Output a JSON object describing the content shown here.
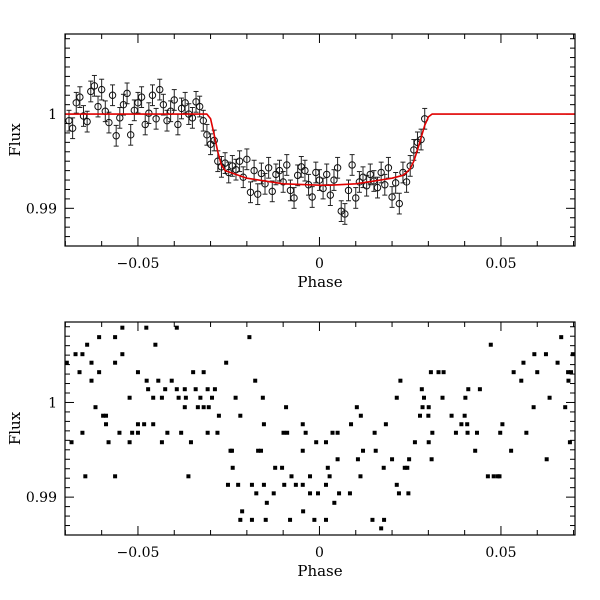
{
  "chart_data": [
    {
      "type": "scatter",
      "title": "",
      "xlabel": "Phase",
      "ylabel": "Flux",
      "xlim": [
        -0.0701,
        0.0704
      ],
      "ylim": [
        0.986,
        1.0085
      ],
      "xticks": [
        -0.05,
        0,
        0.05
      ],
      "xtick_labels": [
        "−0.05",
        "0",
        "0.05"
      ],
      "yticks": [
        0.99,
        1
      ],
      "ytick_labels": [
        "0.99",
        "1"
      ],
      "grid": false,
      "marker": "open-circle",
      "yerr": 0.0011,
      "points": [
        [
          -0.069,
          0.9993
        ],
        [
          -0.068,
          0.9985
        ],
        [
          -0.067,
          1.0012
        ],
        [
          -0.066,
          1.0018
        ],
        [
          -0.065,
          0.9998
        ],
        [
          -0.064,
          0.9992
        ],
        [
          -0.063,
          1.0024
        ],
        [
          -0.062,
          1.003
        ],
        [
          -0.061,
          1.0008
        ],
        [
          -0.06,
          1.0026
        ],
        [
          -0.059,
          1.0003
        ],
        [
          -0.058,
          0.9991
        ],
        [
          -0.057,
          1.002
        ],
        [
          -0.056,
          0.9977
        ],
        [
          -0.055,
          0.9996
        ],
        [
          -0.054,
          1.001
        ],
        [
          -0.053,
          1.0022
        ],
        [
          -0.052,
          0.9978
        ],
        [
          -0.051,
          1.0004
        ],
        [
          -0.05,
          1.0012
        ],
        [
          -0.049,
          1.0018
        ],
        [
          -0.048,
          0.9989
        ],
        [
          -0.047,
          1.0001
        ],
        [
          -0.046,
          1.002
        ],
        [
          -0.045,
          0.9995
        ],
        [
          -0.044,
          1.0026
        ],
        [
          -0.043,
          1.001
        ],
        [
          -0.042,
          0.9993
        ],
        [
          -0.041,
          1.0003
        ],
        [
          -0.04,
          1.0015
        ],
        [
          -0.039,
          0.9989
        ],
        [
          -0.038,
          1.0006
        ],
        [
          -0.037,
          1.0012
        ],
        [
          -0.036,
          1.0
        ],
        [
          -0.035,
          0.9996
        ],
        [
          -0.034,
          1.0013
        ],
        [
          -0.033,
          1.0008
        ],
        [
          -0.032,
          0.9993
        ],
        [
          -0.031,
          0.9978
        ],
        [
          -0.03,
          0.9968
        ],
        [
          -0.029,
          0.9972
        ],
        [
          -0.028,
          0.995
        ],
        [
          -0.027,
          0.9944
        ],
        [
          -0.026,
          0.9948
        ],
        [
          -0.025,
          0.9938
        ],
        [
          -0.024,
          0.9945
        ],
        [
          -0.023,
          0.9941
        ],
        [
          -0.022,
          0.995
        ],
        [
          -0.021,
          0.9933
        ],
        [
          -0.02,
          0.9952
        ],
        [
          -0.019,
          0.9917
        ],
        [
          -0.018,
          0.994
        ],
        [
          -0.017,
          0.9915
        ],
        [
          -0.016,
          0.9937
        ],
        [
          -0.015,
          0.9926
        ],
        [
          -0.014,
          0.9943
        ],
        [
          -0.013,
          0.9918
        ],
        [
          -0.012,
          0.9936
        ],
        [
          -0.011,
          0.994
        ],
        [
          -0.01,
          0.9928
        ],
        [
          -0.009,
          0.9946
        ],
        [
          -0.008,
          0.9919
        ],
        [
          -0.007,
          0.9911
        ],
        [
          -0.006,
          0.9935
        ],
        [
          -0.005,
          0.9944
        ],
        [
          -0.004,
          0.994
        ],
        [
          -0.003,
          0.9925
        ],
        [
          -0.002,
          0.9912
        ],
        [
          -0.001,
          0.9938
        ],
        [
          0.0,
          0.993
        ],
        [
          0.001,
          0.9921
        ],
        [
          0.002,
          0.9936
        ],
        [
          0.003,
          0.9914
        ],
        [
          0.004,
          0.993
        ],
        [
          0.005,
          0.9943
        ],
        [
          0.006,
          0.9897
        ],
        [
          0.007,
          0.9894
        ],
        [
          0.008,
          0.9919
        ],
        [
          0.009,
          0.9946
        ],
        [
          0.01,
          0.9911
        ],
        [
          0.011,
          0.9928
        ],
        [
          0.012,
          0.9933
        ],
        [
          0.013,
          0.9924
        ],
        [
          0.014,
          0.9936
        ],
        [
          0.015,
          0.9929
        ],
        [
          0.016,
          0.9922
        ],
        [
          0.017,
          0.9938
        ],
        [
          0.018,
          0.9925
        ],
        [
          0.019,
          0.9943
        ],
        [
          0.02,
          0.9912
        ],
        [
          0.021,
          0.9927
        ],
        [
          0.022,
          0.9905
        ],
        [
          0.023,
          0.9938
        ],
        [
          0.024,
          0.9928
        ],
        [
          0.025,
          0.9945
        ],
        [
          0.026,
          0.9962
        ],
        [
          0.027,
          0.997
        ],
        [
          0.028,
          0.9973
        ],
        [
          0.029,
          0.9995
        ]
      ],
      "model": {
        "color": "#e00000",
        "x": [
          -0.0701,
          -0.031,
          -0.03,
          -0.029,
          -0.028,
          -0.027,
          -0.026,
          -0.02,
          -0.01,
          0,
          0.003,
          0.01,
          0.02,
          0.023,
          0.024,
          0.025,
          0.026,
          0.027,
          0.028,
          0.029,
          0.03,
          0.031,
          0.0704
        ],
        "y": [
          1,
          1,
          0.9995,
          0.9978,
          0.996,
          0.9946,
          0.994,
          0.9932,
          0.9926,
          0.99245,
          0.99245,
          0.9926,
          0.9932,
          0.9935,
          0.9938,
          0.9942,
          0.995,
          0.9962,
          0.9975,
          0.9988,
          0.9997,
          1,
          1
        ]
      }
    },
    {
      "type": "scatter",
      "title": "",
      "xlabel": "Phase",
      "ylabel": "Flux",
      "xlim": [
        -0.0701,
        0.0704
      ],
      "ylim": [
        0.986,
        1.0085
      ],
      "xticks": [
        -0.05,
        0,
        0.05
      ],
      "xtick_labels": [
        "−0.05",
        "0",
        "0.05"
      ],
      "yticks": [
        0.99,
        1
      ],
      "ytick_labels": [
        "0.99",
        "1"
      ],
      "grid": false,
      "marker": "filled-square",
      "points": [
        [
          -0.0696,
          1.0042
        ],
        [
          -0.0683,
          0.9958
        ],
        [
          -0.0672,
          1.0051
        ],
        [
          -0.0661,
          1.0032
        ],
        [
          -0.0653,
          1.0051
        ],
        [
          -0.0653,
          0.9968
        ],
        [
          -0.0645,
          0.9922
        ],
        [
          -0.064,
          1.0061
        ],
        [
          -0.0628,
          1.0042
        ],
        [
          -0.0628,
          1.0023
        ],
        [
          -0.0617,
          0.9995
        ],
        [
          -0.0607,
          1.0069
        ],
        [
          -0.0607,
          1.0032
        ],
        [
          -0.0596,
          0.9986
        ],
        [
          -0.0588,
          0.9986
        ],
        [
          -0.0588,
          0.9977
        ],
        [
          -0.0581,
          0.9958
        ],
        [
          -0.0563,
          1.0042
        ],
        [
          -0.0563,
          1.0069
        ],
        [
          -0.0563,
          0.9922
        ],
        [
          -0.0551,
          0.9968
        ],
        [
          -0.0543,
          1.0079
        ],
        [
          -0.0543,
          1.0051
        ],
        [
          -0.0523,
          1.0005
        ],
        [
          -0.0523,
          0.9958
        ],
        [
          -0.0516,
          0.9968
        ],
        [
          -0.05,
          1.0032
        ],
        [
          -0.05,
          0.9977
        ],
        [
          -0.05,
          0.9968
        ],
        [
          -0.0483,
          0.9977
        ],
        [
          -0.0477,
          1.0079
        ],
        [
          -0.0476,
          1.0023
        ],
        [
          -0.0472,
          1.0014
        ],
        [
          -0.0458,
          1.0005
        ],
        [
          -0.0458,
          0.9977
        ],
        [
          -0.0452,
          1.0061
        ],
        [
          -0.0444,
          1.0023
        ],
        [
          -0.0434,
          1.0005
        ],
        [
          -0.0434,
          0.9958
        ],
        [
          -0.0425,
          1.0014
        ],
        [
          -0.0419,
          0.9968
        ],
        [
          -0.0407,
          1.0023
        ],
        [
          -0.0393,
          1.0079
        ],
        [
          -0.0393,
          1.0014
        ],
        [
          -0.0388,
          1.0005
        ],
        [
          -0.0381,
          0.9968
        ],
        [
          -0.0371,
          1.0014
        ],
        [
          -0.0371,
          0.9995
        ],
        [
          -0.0368,
          1.0005
        ],
        [
          -0.0361,
          0.9922
        ],
        [
          -0.0354,
          0.9958
        ],
        [
          -0.0348,
          1.0032
        ],
        [
          -0.0341,
          1.0014
        ],
        [
          -0.0335,
          0.9995
        ],
        [
          -0.0328,
          1.0005
        ],
        [
          -0.0319,
          1.0032
        ],
        [
          -0.0319,
          0.9995
        ],
        [
          -0.0308,
          1.0014
        ],
        [
          -0.0308,
          0.9968
        ],
        [
          -0.0305,
          0.9995
        ],
        [
          -0.0296,
          1.0005
        ],
        [
          -0.0288,
          1.0014
        ],
        [
          -0.0281,
          0.9968
        ],
        [
          -0.0277,
          0.9986
        ],
        [
          -0.0257,
          1.0042
        ],
        [
          -0.0252,
          0.9913
        ],
        [
          -0.0245,
          0.9949
        ],
        [
          -0.0241,
          0.9949
        ],
        [
          -0.0239,
          0.9931
        ],
        [
          -0.0231,
          1.0005
        ],
        [
          -0.0224,
          0.9913
        ],
        [
          -0.0218,
          0.9986
        ],
        [
          -0.0218,
          0.9876
        ],
        [
          -0.0213,
          0.9885
        ],
        [
          -0.0186,
          0.9876
        ],
        [
          -0.0186,
          0.9913
        ],
        [
          -0.0193,
          1.0069
        ],
        [
          -0.0177,
          1.0023
        ],
        [
          -0.0174,
          0.9904
        ],
        [
          -0.0169,
          0.9949
        ],
        [
          -0.0161,
          0.9949
        ],
        [
          -0.0156,
          1.0005
        ],
        [
          -0.0153,
          0.9913
        ],
        [
          -0.0153,
          0.9977
        ],
        [
          -0.0148,
          0.9876
        ],
        [
          -0.0145,
          0.9894
        ],
        [
          -0.0126,
          0.9904
        ],
        [
          -0.0122,
          0.9931
        ],
        [
          -0.0103,
          0.9931
        ],
        [
          -0.0099,
          0.9968
        ],
        [
          -0.0097,
          0.9913
        ],
        [
          -0.0092,
          0.9995
        ],
        [
          -0.0089,
          0.9968
        ],
        [
          -0.0081,
          0.9876
        ],
        [
          -0.0077,
          0.9922
        ],
        [
          -0.0065,
          0.9913
        ],
        [
          -0.0046,
          0.9949
        ],
        [
          -0.0046,
          0.9977
        ],
        [
          -0.0046,
          0.9913
        ],
        [
          -0.0045,
          0.9885
        ],
        [
          -0.0038,
          0.9968
        ],
        [
          -0.0026,
          0.9922
        ],
        [
          -0.0026,
          0.9904
        ],
        [
          -0.0014,
          0.9876
        ],
        [
          -0.0009,
          0.9958
        ],
        [
          -0.0004,
          0.9904
        ],
        [
          0.0018,
          0.9958
        ],
        [
          0.0018,
          0.9876
        ],
        [
          0.0018,
          0.9913
        ],
        [
          0.0023,
          0.9931
        ],
        [
          0.0028,
          0.9922
        ],
        [
          0.0036,
          0.9968
        ],
        [
          0.0041,
          0.9894
        ],
        [
          0.005,
          0.9968
        ],
        [
          0.005,
          0.994
        ],
        [
          0.0054,
          0.9904
        ],
        [
          0.0084,
          0.9904
        ],
        [
          0.0087,
          0.9977
        ],
        [
          0.0103,
          0.9995
        ],
        [
          0.0106,
          0.994
        ],
        [
          0.0113,
          0.9922
        ],
        [
          0.0114,
          0.9986
        ],
        [
          0.012,
          0.9949
        ],
        [
          0.0146,
          0.9876
        ],
        [
          0.0152,
          0.9968
        ],
        [
          0.0155,
          0.9949
        ],
        [
          0.017,
          0.9867
        ],
        [
          0.0177,
          0.9931
        ],
        [
          0.0178,
          0.9876
        ],
        [
          0.0183,
          0.9977
        ],
        [
          0.02,
          0.994
        ],
        [
          0.0213,
          1.0005
        ],
        [
          0.0213,
          0.9913
        ],
        [
          0.0219,
          0.9904
        ],
        [
          0.0223,
          1.0023
        ],
        [
          0.0235,
          0.9931
        ],
        [
          0.0242,
          0.9931
        ],
        [
          0.0245,
          0.9904
        ],
        [
          0.0247,
          0.994
        ],
        [
          0.0263,
          0.9958
        ],
        [
          0.0277,
          0.9986
        ],
        [
          0.0282,
          1.0014
        ],
        [
          0.0284,
          0.9995
        ],
        [
          0.0288,
          1.0005
        ],
        [
          0.03,
          0.9986
        ],
        [
          0.0301,
          0.9995
        ],
        [
          0.0301,
          0.9958
        ],
        [
          0.0307,
          1.0032
        ],
        [
          0.0309,
          0.994
        ],
        [
          0.0311,
          0.9968
        ],
        [
          0.0328,
          1.0032
        ],
        [
          0.0339,
          1.0005
        ],
        [
          0.0342,
          1.0032
        ],
        [
          0.0364,
          0.9986
        ],
        [
          0.0376,
          0.9968
        ],
        [
          0.0391,
          0.9977
        ],
        [
          0.04,
          0.9986
        ],
        [
          0.0402,
          1.0005
        ],
        [
          0.0407,
          0.9977
        ],
        [
          0.0408,
          0.9968
        ],
        [
          0.041,
          1.0014
        ],
        [
          0.0429,
          0.9949
        ],
        [
          0.0434,
          0.9968
        ],
        [
          0.0442,
          1.0014
        ],
        [
          0.0464,
          0.9922
        ],
        [
          0.0472,
          1.0061
        ],
        [
          0.048,
          0.9922
        ],
        [
          0.0491,
          0.9922
        ],
        [
          0.0496,
          0.9922
        ],
        [
          0.0498,
          0.9968
        ],
        [
          0.0504,
          0.9977
        ],
        [
          0.0528,
          0.9949
        ],
        [
          0.0535,
          1.0032
        ],
        [
          0.0556,
          1.0023
        ],
        [
          0.0562,
          1.0042
        ],
        [
          0.057,
          0.9968
        ],
        [
          0.059,
          0.9995
        ],
        [
          0.0592,
          1.0051
        ],
        [
          0.06,
          1.0032
        ],
        [
          0.0624,
          1.0051
        ],
        [
          0.0626,
          0.994
        ],
        [
          0.0634,
          1.0005
        ],
        [
          0.0656,
          1.0042
        ],
        [
          0.0666,
          1.0069
        ],
        [
          0.0677,
          0.9995
        ],
        [
          0.0685,
          1.0032
        ],
        [
          0.0686,
          1.0023
        ],
        [
          0.069,
          0.9958
        ],
        [
          0.0693,
          1.0032
        ],
        [
          0.0698,
          1.0051
        ]
      ]
    }
  ]
}
